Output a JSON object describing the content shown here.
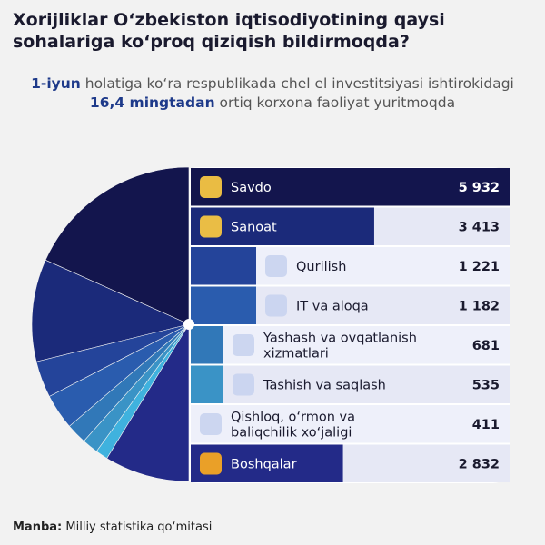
{
  "header": {
    "title": "Xorijliklar O‘zbekiston iqtisodiyotining qaysi sohalariga ko‘proq qiziqish bildirmoqda?",
    "subtitle_parts": [
      {
        "text": "1-iyun",
        "hl": true
      },
      {
        "text": " holatiga ko‘ra respublikada chel el investitsiyasi ishtirokidagi ",
        "hl": false
      },
      {
        "text": "16,4 mingtadan",
        "hl": true
      },
      {
        "text": " ortiq korxona faoliyat yuritmoqda",
        "hl": false
      }
    ]
  },
  "chart_data": {
    "type": "pie",
    "total_label": "",
    "categories": [
      {
        "label": "Savdo",
        "value": 5932,
        "value_label": "5 932",
        "icon": "shop-icon",
        "color": "#13154d"
      },
      {
        "label": "Sanoat",
        "value": 3413,
        "value_label": "3 413",
        "icon": "factory-icon",
        "color": "#1b2a7a"
      },
      {
        "label": "Qurilish",
        "value": 1221,
        "value_label": "1 221",
        "icon": "crane-icon",
        "color": "#24449a"
      },
      {
        "label": "IT va aloqa",
        "value": 1182,
        "value_label": "1 182",
        "icon": "wifi-icon",
        "color": "#2a5cae"
      },
      {
        "label": "Yashash va ovqatlanish xizmatlari",
        "value": 681,
        "value_label": "681",
        "icon": "food-icon",
        "color": "#3178b8"
      },
      {
        "label": "Tashish va saqlash",
        "value": 535,
        "value_label": "535",
        "icon": "box-icon",
        "color": "#3a93c6"
      },
      {
        "label": "Qishloq, o‘rmon va baliqchilik xo‘jaligi",
        "value": 411,
        "value_label": "411",
        "icon": "farm-icon",
        "color": "#3fb2de"
      },
      {
        "label": "Boshqalar",
        "value": 2832,
        "value_label": "2 832",
        "icon": "grid-icon",
        "color": "#232a88"
      }
    ]
  },
  "footer": {
    "source_label": "Manba:",
    "source_text": "Milliy statistika qo‘mitasi"
  }
}
